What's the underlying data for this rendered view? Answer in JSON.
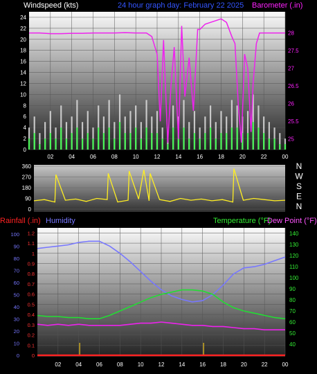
{
  "chart_data": [
    {
      "type": "line",
      "panel": "wind_barometer",
      "title": "24 hour graph day:  February 22 2025",
      "ylabel_left": "Windspeed (kts)",
      "ylabel_right": "Barometer (.in)",
      "x_ticks": [
        "02",
        "04",
        "06",
        "08",
        "10",
        "12",
        "14",
        "16",
        "18",
        "20",
        "22",
        "00"
      ],
      "xlim": [
        0,
        24
      ],
      "ylim_left": [
        0,
        25
      ],
      "yticks_left": [
        0,
        2,
        4,
        6,
        8,
        10,
        12,
        14,
        16,
        18,
        20,
        22,
        24
      ],
      "ylim_right": [
        24.7,
        28.6
      ],
      "yticks_right": [
        "25",
        "25.5",
        "26",
        "26.5",
        "27",
        "27.5",
        "28"
      ],
      "yticks_right_values": [
        25,
        25.5,
        26,
        26.5,
        27,
        27.5,
        28
      ],
      "grid": true,
      "series": [
        {
          "name": "Gust",
          "color": "#dddddd",
          "x": [
            0,
            0.5,
            1,
            1.5,
            2,
            2.5,
            3,
            3.5,
            4,
            4.5,
            5,
            5.5,
            6,
            6.5,
            7,
            7.5,
            8,
            8.5,
            9,
            9.5,
            10,
            10.5,
            11,
            11.5,
            12,
            12.5,
            13,
            13.5,
            14,
            14.5,
            15,
            15.5,
            16,
            16.5,
            17,
            17.5,
            18,
            18.5,
            19,
            19.5,
            20,
            20.5,
            21,
            21.5,
            22,
            22.5,
            23,
            23.5,
            24
          ],
          "values": [
            4,
            6,
            3,
            5,
            7,
            4,
            8,
            5,
            6,
            9,
            5,
            7,
            4,
            8,
            6,
            9,
            5,
            10,
            6,
            7,
            8,
            5,
            9,
            6,
            7,
            4,
            3,
            8,
            6,
            9,
            5,
            7,
            4,
            6,
            8,
            5,
            7,
            6,
            9,
            8,
            6,
            7,
            10,
            8,
            6,
            5,
            4,
            3,
            2
          ]
        },
        {
          "name": "Windspeed",
          "color": "#33ff44",
          "x": [
            0,
            0.5,
            1,
            1.5,
            2,
            2.5,
            3,
            3.5,
            4,
            4.5,
            5,
            5.5,
            6,
            6.5,
            7,
            7.5,
            8,
            8.5,
            9,
            9.5,
            10,
            10.5,
            11,
            11.5,
            12,
            12.5,
            13,
            13.5,
            14,
            14.5,
            15,
            15.5,
            16,
            16.5,
            17,
            17.5,
            18,
            18.5,
            19,
            19.5,
            20,
            20.5,
            21,
            21.5,
            22,
            22.5,
            23,
            23.5,
            24
          ],
          "values": [
            2,
            3,
            1,
            2,
            3,
            2,
            4,
            2,
            3,
            4,
            2,
            3,
            2,
            4,
            3,
            4,
            2,
            5,
            3,
            3,
            4,
            2,
            4,
            3,
            3,
            2,
            1,
            4,
            3,
            4,
            2,
            3,
            2,
            3,
            4,
            2,
            3,
            3,
            4,
            4,
            3,
            3,
            5,
            4,
            3,
            2,
            2,
            1,
            1
          ]
        },
        {
          "name": "Barometer",
          "color": "#ee22ee",
          "axis": "right",
          "x": [
            0,
            1,
            2,
            3,
            4,
            5,
            6,
            7,
            8,
            9,
            10,
            11,
            11.5,
            12,
            12.3,
            12.6,
            13,
            13.3,
            13.6,
            14,
            14.3,
            14.6,
            15,
            15.4,
            15.8,
            16,
            16.5,
            17,
            17.5,
            18,
            18.5,
            19,
            19.3,
            19.6,
            19.9,
            20.2,
            20.5,
            20.8,
            21,
            21.3,
            21.6,
            22,
            22.5,
            23,
            24
          ],
          "values": [
            28.0,
            28.0,
            27.98,
            27.98,
            27.99,
            27.99,
            28.0,
            28.0,
            28.0,
            28.01,
            28.0,
            28.0,
            27.9,
            27.4,
            25.5,
            27.8,
            24.9,
            26.5,
            27.6,
            25.0,
            28.2,
            26.2,
            27.3,
            25.8,
            28.1,
            28.1,
            28.25,
            28.3,
            28.35,
            28.4,
            28.3,
            27.9,
            27.7,
            26.0,
            24.9,
            27.4,
            27.0,
            25.2,
            26.6,
            27.7,
            28.0,
            28.0,
            28.0,
            28.0,
            28.0
          ]
        }
      ]
    },
    {
      "type": "line",
      "panel": "wind_direction",
      "right_labels": [
        "N",
        "W",
        "S",
        "E",
        "N"
      ],
      "ylim": [
        0,
        360
      ],
      "yticks": [
        0,
        90,
        180,
        270,
        360
      ],
      "xlim": [
        0,
        24
      ],
      "series": [
        {
          "name": "Wind Direction",
          "color": "#ffee22",
          "x": [
            0,
            1,
            2,
            2.1,
            3,
            4,
            5,
            6,
            7,
            7.1,
            8,
            9,
            9.1,
            10,
            10.5,
            11,
            11.1,
            12,
            13,
            14,
            15,
            16,
            17,
            18,
            19,
            19.1,
            20,
            21,
            22,
            23,
            24
          ],
          "values": [
            70,
            80,
            60,
            290,
            75,
            85,
            65,
            90,
            80,
            300,
            60,
            75,
            320,
            85,
            330,
            70,
            300,
            80,
            65,
            90,
            75,
            85,
            70,
            80,
            60,
            340,
            75,
            90,
            80,
            70,
            75
          ]
        }
      ]
    },
    {
      "type": "line",
      "panel": "temperature_humidity",
      "ylabel_left_red": "Rainfall (.in)",
      "ylabel_left_blue": "Humidity",
      "ylabel_right_green": "Temperature (°F)",
      "ylabel_right_pink": "Dew Point (°F)",
      "rain_ticks": [
        0,
        0.1,
        0.2,
        0.3,
        0.4,
        0.5,
        0.6,
        0.7,
        0.8,
        0.9,
        1.0,
        1.1,
        1.2
      ],
      "rain_tick_labels": [
        "0",
        "0.1",
        "0.2",
        "0.3",
        "0.4",
        "0.5",
        "0.6",
        "0.7",
        "0.8",
        "0.9",
        "1",
        "1.1",
        "1.2"
      ],
      "humidity_ticks": [
        0,
        10,
        20,
        30,
        40,
        50,
        60,
        70,
        80,
        90,
        100
      ],
      "temp_ticks": [
        40,
        50,
        60,
        70,
        80,
        90,
        100,
        110,
        120,
        130,
        140
      ],
      "ylim_temp": [
        30,
        145
      ],
      "ylim_humidity": [
        0,
        105
      ],
      "xlim": [
        0,
        24
      ],
      "x_ticks": [
        "02",
        "04",
        "06",
        "08",
        "10",
        "12",
        "14",
        "16",
        "18",
        "20",
        "22",
        "00"
      ],
      "series": [
        {
          "name": "Humidity",
          "color": "#7777ff",
          "x": [
            0,
            1,
            2,
            3,
            4,
            5,
            6,
            7,
            8,
            9,
            10,
            11,
            12,
            13,
            14,
            15,
            16,
            17,
            18,
            19,
            20,
            21,
            22,
            23,
            24
          ],
          "values": [
            88,
            89,
            90,
            91,
            93,
            94,
            94,
            90,
            84,
            77,
            69,
            61,
            54,
            49,
            46,
            44,
            45,
            50,
            58,
            67,
            72,
            73,
            75,
            78,
            81
          ]
        },
        {
          "name": "Temperature",
          "color": "#22dd33",
          "x": [
            0,
            1,
            2,
            3,
            4,
            5,
            6,
            7,
            8,
            9,
            10,
            11,
            12,
            13,
            14,
            15,
            16,
            17,
            18,
            19,
            20,
            21,
            22,
            23,
            24
          ],
          "values": [
            66,
            65,
            65,
            64,
            64,
            63,
            63,
            66,
            70,
            74,
            78,
            82,
            85,
            87,
            89,
            89,
            88,
            85,
            78,
            73,
            70,
            68,
            66,
            64,
            63
          ]
        },
        {
          "name": "Dew Point",
          "color": "#ee22ee",
          "x": [
            0,
            1,
            2,
            3,
            4,
            5,
            6,
            7,
            8,
            9,
            10,
            11,
            12,
            13,
            14,
            15,
            16,
            17,
            18,
            19,
            20,
            21,
            22,
            23,
            24
          ],
          "values": [
            58,
            57,
            58,
            57,
            58,
            57,
            57,
            57,
            57,
            58,
            59,
            59,
            60,
            59,
            58,
            57,
            57,
            56,
            56,
            55,
            54,
            54,
            53,
            53,
            53
          ]
        },
        {
          "name": "Rainfall",
          "color": "#ff2222",
          "axis": "rain",
          "x": [
            0,
            24
          ],
          "values": [
            0,
            0
          ]
        }
      ],
      "markers": [
        {
          "x": 4.1,
          "color": "#ccaa22"
        },
        {
          "x": 16.1,
          "color": "#ccaa22"
        }
      ]
    }
  ]
}
